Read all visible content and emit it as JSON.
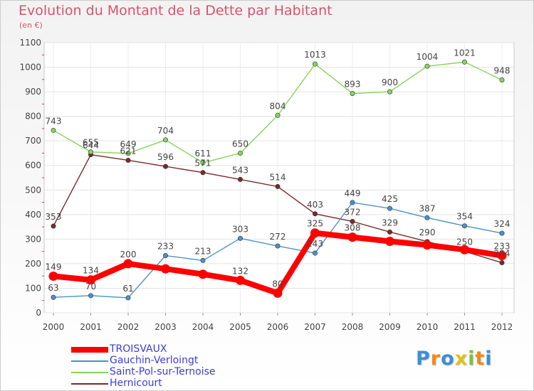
{
  "header": {
    "title": "Evolution du Montant de la Dette par Habitant",
    "unit": "(en €)"
  },
  "logo": {
    "text": "Proxiti"
  },
  "chart_data": {
    "type": "line",
    "title": "Evolution du Montant de la Dette par Habitant",
    "subtitle": "(en €)",
    "xlabel": "",
    "ylabel": "",
    "ylim": [
      0,
      1100
    ],
    "y_ticks": [
      0,
      100,
      200,
      300,
      400,
      500,
      600,
      700,
      800,
      900,
      1000,
      1100
    ],
    "categories": [
      "2000",
      "2001",
      "2002",
      "2003",
      "2004",
      "2005",
      "2006",
      "2007",
      "2008",
      "2009",
      "2010",
      "2011",
      "2012"
    ],
    "grid": true,
    "legend_position": "bottom-left",
    "series": [
      {
        "name": "TROISVAUX",
        "color": "#ff0000",
        "values": [
          149,
          134,
          200,
          179,
          157,
          132,
          80,
          325,
          308,
          291,
          276,
          257,
          233
        ],
        "labels": [
          "149",
          "134",
          "200",
          "",
          "",
          "132",
          "80",
          "325",
          "308",
          "",
          "",
          "",
          "233"
        ]
      },
      {
        "name": "Gauchin-Verloingt",
        "color": "#4d90c8",
        "values": [
          63,
          70,
          61,
          233,
          213,
          303,
          272,
          243,
          449,
          425,
          387,
          354,
          324
        ],
        "labels": [
          "63",
          "70",
          "61",
          "233",
          "213",
          "303",
          "272",
          "243",
          "449",
          "425",
          "387",
          "354",
          "324"
        ]
      },
      {
        "name": "Saint-Pol-sur-Ternoise",
        "color": "#86d45a",
        "values": [
          743,
          655,
          649,
          704,
          611,
          650,
          804,
          1013,
          893,
          900,
          1004,
          1021,
          948
        ],
        "labels": [
          "743",
          "655",
          "649",
          "704",
          "611",
          "650",
          "804",
          "1013",
          "893",
          "900",
          "1004",
          "1021",
          "948"
        ]
      },
      {
        "name": "Hernicourt",
        "color": "#7a2a2a",
        "values": [
          353,
          644,
          621,
          596,
          571,
          543,
          514,
          403,
          372,
          329,
          290,
          250,
          204
        ],
        "labels": [
          "353",
          "644",
          "621",
          "596",
          "571",
          "543",
          "514",
          "403",
          "372",
          "329",
          "290",
          "250",
          "204"
        ]
      }
    ]
  }
}
